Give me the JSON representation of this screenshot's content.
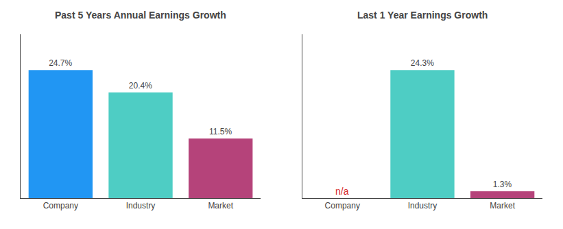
{
  "chart_data": [
    {
      "type": "bar",
      "title": "Past 5 Years Annual Earnings Growth",
      "categories": [
        "Company",
        "Industry",
        "Market"
      ],
      "values": [
        24.7,
        20.4,
        11.5
      ],
      "value_labels": [
        "24.7%",
        "20.4%",
        "11.5%"
      ],
      "colors": [
        "#2196f3",
        "#4ecdc4",
        "#b5437a"
      ],
      "data_labels": true,
      "ylim": [
        0,
        31.616
      ],
      "tick_labels": "x",
      "grid": false
    },
    {
      "type": "bar",
      "title": "Last 1 Year Earnings Growth",
      "categories": [
        "Company",
        "Industry",
        "Market"
      ],
      "values": [
        null,
        24.3,
        1.3
      ],
      "value_labels": [
        "n/a",
        "24.3%",
        "1.3%"
      ],
      "colors": [
        null,
        "#4ecdc4",
        "#b5437a"
      ],
      "data_labels": true,
      "ylim": [
        0,
        31.104
      ],
      "tick_labels": "x",
      "grid": false
    }
  ]
}
